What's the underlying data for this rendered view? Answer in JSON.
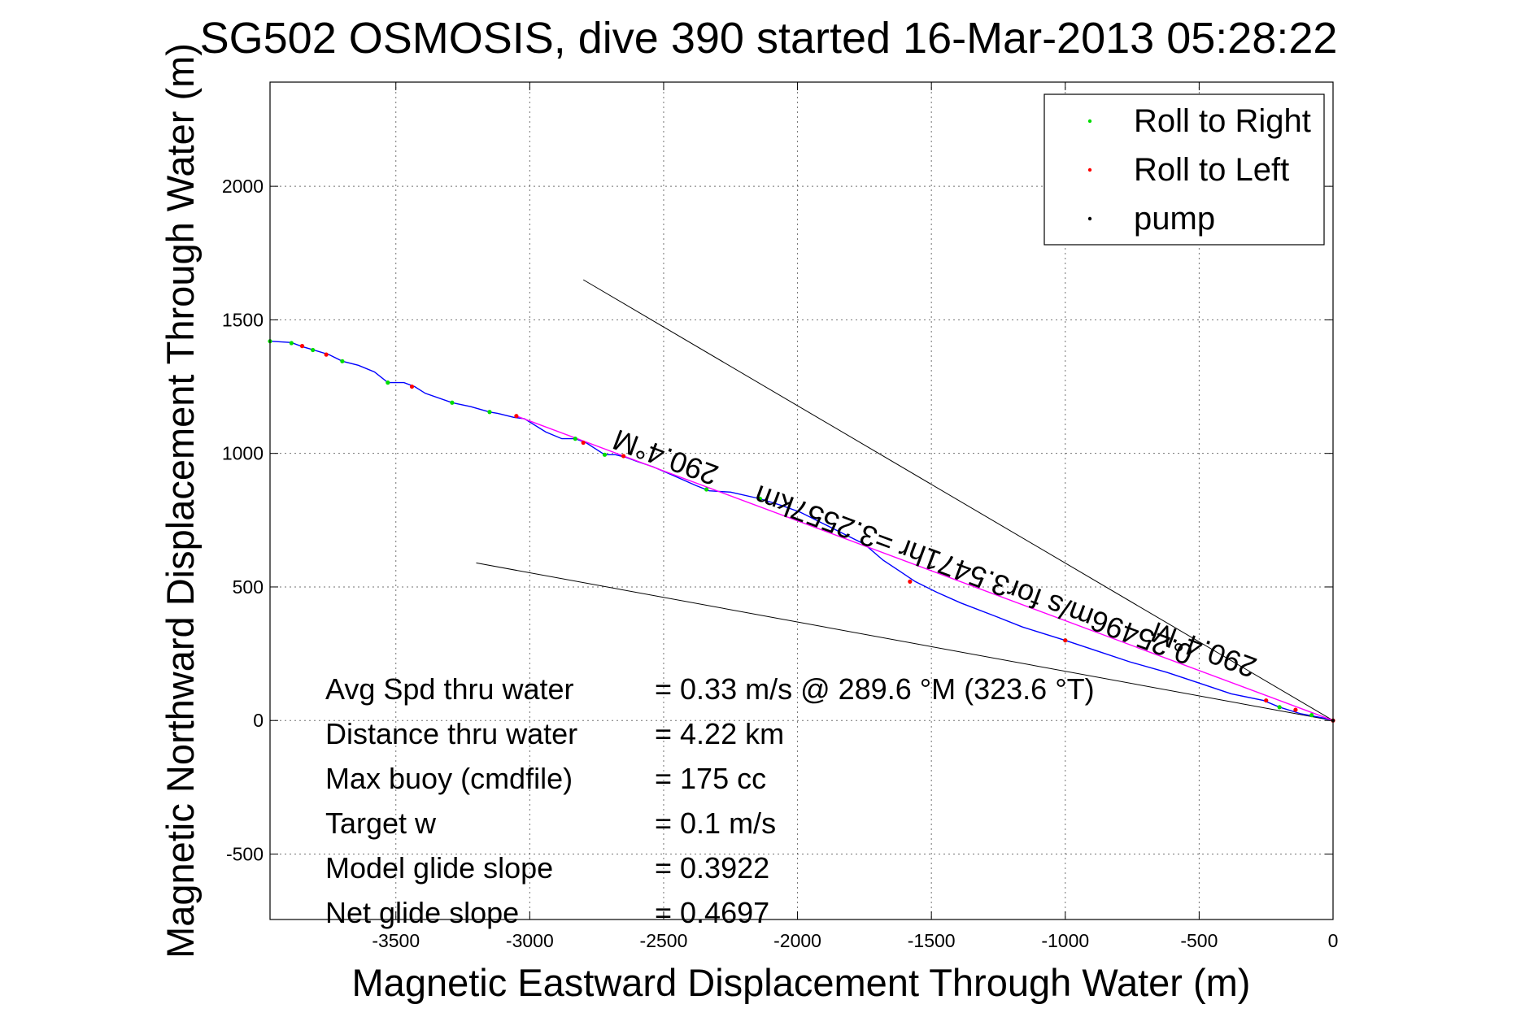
{
  "chart_data": {
    "type": "line",
    "title": "SG502 OSMOSIS, dive 390 started 16-Mar-2013 05:28:22",
    "xlabel": "Magnetic Eastward Displacement Through Water (m)",
    "ylabel": "Magnetic Northward Displacement Through Water (m)",
    "xlim": [
      -3970,
      0
    ],
    "ylim": [
      -745,
      2390
    ],
    "xticks": [
      -3500,
      -3000,
      -2500,
      -2000,
      -1500,
      -1000,
      -500,
      0
    ],
    "yticks": [
      -500,
      0,
      500,
      1000,
      1500,
      2000
    ],
    "grid": true,
    "legend_position": "top-right",
    "legend": [
      {
        "label": "Roll to Right",
        "color": "#00dd00"
      },
      {
        "label": "Roll to Left",
        "color": "#ff0000"
      },
      {
        "label": "pump",
        "color": "#000000"
      }
    ],
    "series": [
      {
        "color": "#0000ff",
        "points": [
          [
            -3970,
            1420
          ],
          [
            -3890,
            1415
          ],
          [
            -3850,
            1400
          ],
          [
            -3810,
            1388
          ],
          [
            -3750,
            1370
          ],
          [
            -3700,
            1345
          ],
          [
            -3640,
            1330
          ],
          [
            -3580,
            1305
          ],
          [
            -3530,
            1265
          ],
          [
            -3470,
            1265
          ],
          [
            -3430,
            1250
          ],
          [
            -3390,
            1225
          ],
          [
            -3290,
            1190
          ],
          [
            -3220,
            1175
          ],
          [
            -3150,
            1155
          ],
          [
            -3120,
            1150
          ],
          [
            -3060,
            1135
          ],
          [
            -3020,
            1130
          ],
          [
            -2940,
            1080
          ],
          [
            -2880,
            1055
          ],
          [
            -2830,
            1055
          ],
          [
            -2790,
            1040
          ],
          [
            -2720,
            995
          ],
          [
            -2680,
            995
          ],
          [
            -2640,
            985
          ],
          [
            -2600,
            970
          ],
          [
            -2540,
            950
          ],
          [
            -2470,
            920
          ],
          [
            -2380,
            880
          ],
          [
            -2330,
            860
          ],
          [
            -2250,
            855
          ],
          [
            -2140,
            830
          ],
          [
            -2060,
            805
          ],
          [
            -1990,
            780
          ],
          [
            -1900,
            735
          ],
          [
            -1830,
            700
          ],
          [
            -1750,
            660
          ],
          [
            -1680,
            600
          ],
          [
            -1620,
            560
          ],
          [
            -1560,
            520
          ],
          [
            -1480,
            480
          ],
          [
            -1390,
            440
          ],
          [
            -1260,
            390
          ],
          [
            -1160,
            350
          ],
          [
            -1000,
            300
          ],
          [
            -880,
            260
          ],
          [
            -760,
            220
          ],
          [
            -620,
            180
          ],
          [
            -500,
            140
          ],
          [
            -380,
            100
          ],
          [
            -260,
            75
          ],
          [
            -200,
            50
          ],
          [
            -120,
            25
          ],
          [
            -40,
            10
          ],
          [
            0,
            0
          ]
        ]
      },
      {
        "color": "#ff00ff",
        "points": [
          [
            -3050,
            1140
          ],
          [
            0,
            0
          ]
        ]
      }
    ],
    "roll_right_points": [
      [
        -3970,
        1420
      ],
      [
        -3890,
        1413
      ],
      [
        -3810,
        1387
      ],
      [
        -3700,
        1345
      ],
      [
        -3530,
        1265
      ],
      [
        -3290,
        1190
      ],
      [
        -3150,
        1155
      ],
      [
        -2830,
        1055
      ],
      [
        -2720,
        995
      ],
      [
        -2340,
        865
      ],
      [
        -2140,
        830
      ],
      [
        -1000,
        300
      ],
      [
        -200,
        50
      ],
      [
        -80,
        20
      ]
    ],
    "roll_left_points": [
      [
        -3850,
        1402
      ],
      [
        -3760,
        1370
      ],
      [
        -3440,
        1250
      ],
      [
        -3050,
        1140
      ],
      [
        -2800,
        1040
      ],
      [
        -2650,
        990
      ],
      [
        -1580,
        520
      ],
      [
        -1000,
        300
      ],
      [
        -250,
        75
      ],
      [
        -140,
        40
      ],
      [
        0,
        0
      ]
    ],
    "pump_points": [
      [
        0,
        0
      ]
    ],
    "guide_lines": [
      {
        "from": [
          -2800,
          1650
        ],
        "to": [
          0,
          0
        ]
      },
      {
        "from": [
          -3200,
          590
        ],
        "to": [
          0,
          0
        ]
      }
    ],
    "annotations": [
      {
        "text": "290.4°M",
        "x": -2480,
        "y": 1020,
        "rotate": 200.4
      },
      {
        "text": "0.25496m/s for3.5471hr =3.2557km",
        "x": -1330,
        "y": 580,
        "rotate": 200.4
      },
      {
        "text": "290.4°M",
        "x": -470,
        "y": 300,
        "rotate": 200.4
      }
    ],
    "stats": [
      {
        "label": "Avg Spd thru water",
        "value": "=  0.33 m/s @ 289.6 °M (323.6 °T)"
      },
      {
        "label": "Distance thru water",
        "value": "=  4.22 km"
      },
      {
        "label": "Max buoy (cmdfile)",
        "value": "= 175 cc"
      },
      {
        "label": "Target w",
        "value": "= 0.1 m/s"
      },
      {
        "label": "Model glide slope",
        "value": "= 0.3922"
      },
      {
        "label": "Net glide slope",
        "value": "= 0.4697"
      }
    ]
  }
}
